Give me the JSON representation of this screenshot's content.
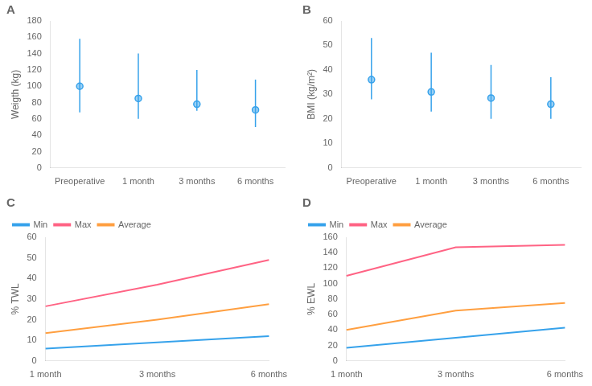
{
  "chart_data": [
    {
      "type": "errorbar",
      "title": "A",
      "ylabel": "Weigth (kg)",
      "categories": [
        "Preoperative",
        "1 month",
        "3 months",
        "6 months"
      ],
      "values": [
        100,
        85,
        78,
        71
      ],
      "mins": [
        68,
        60,
        70,
        50
      ],
      "maxs": [
        158,
        140,
        120,
        108
      ],
      "ylim": [
        0,
        180
      ],
      "yticks": [
        0,
        20,
        40,
        60,
        80,
        100,
        120,
        140,
        160,
        180
      ],
      "grid": false
    },
    {
      "type": "errorbar",
      "title": "B",
      "ylabel": "BMI (kg/m²)",
      "categories": [
        "Preoperative",
        "1 month",
        "3 months",
        "6 months"
      ],
      "values": [
        36,
        31,
        28.5,
        26
      ],
      "mins": [
        28,
        23,
        20,
        20
      ],
      "maxs": [
        53,
        47,
        42,
        37
      ],
      "ylim": [
        0,
        60
      ],
      "yticks": [
        0,
        10,
        20,
        30,
        40,
        50,
        60
      ],
      "grid": false
    },
    {
      "type": "line",
      "title": "C",
      "ylabel": "% TWL",
      "categories": [
        "1 month",
        "3 months",
        "6 months"
      ],
      "series": [
        {
          "name": "Min",
          "values": [
            6,
            9,
            12
          ]
        },
        {
          "name": "Max",
          "values": [
            26.5,
            37,
            49
          ]
        },
        {
          "name": "Average",
          "values": [
            13.5,
            20,
            27.5
          ]
        }
      ],
      "ylim": [
        0,
        60
      ],
      "yticks": [
        0,
        10,
        20,
        30,
        40,
        50,
        60
      ],
      "grid": false,
      "legend": "upper left"
    },
    {
      "type": "line",
      "title": "D",
      "ylabel": "% EWL",
      "categories": [
        "1 month",
        "3 months",
        "6 months"
      ],
      "series": [
        {
          "name": "Min",
          "values": [
            17,
            30,
            43
          ]
        },
        {
          "name": "Max",
          "values": [
            110,
            147,
            150
          ]
        },
        {
          "name": "Average",
          "values": [
            40,
            65,
            75
          ]
        }
      ],
      "ylim": [
        0,
        160
      ],
      "yticks": [
        0,
        20,
        40,
        60,
        80,
        100,
        120,
        140,
        160
      ],
      "grid": false,
      "legend": "upper left"
    }
  ]
}
